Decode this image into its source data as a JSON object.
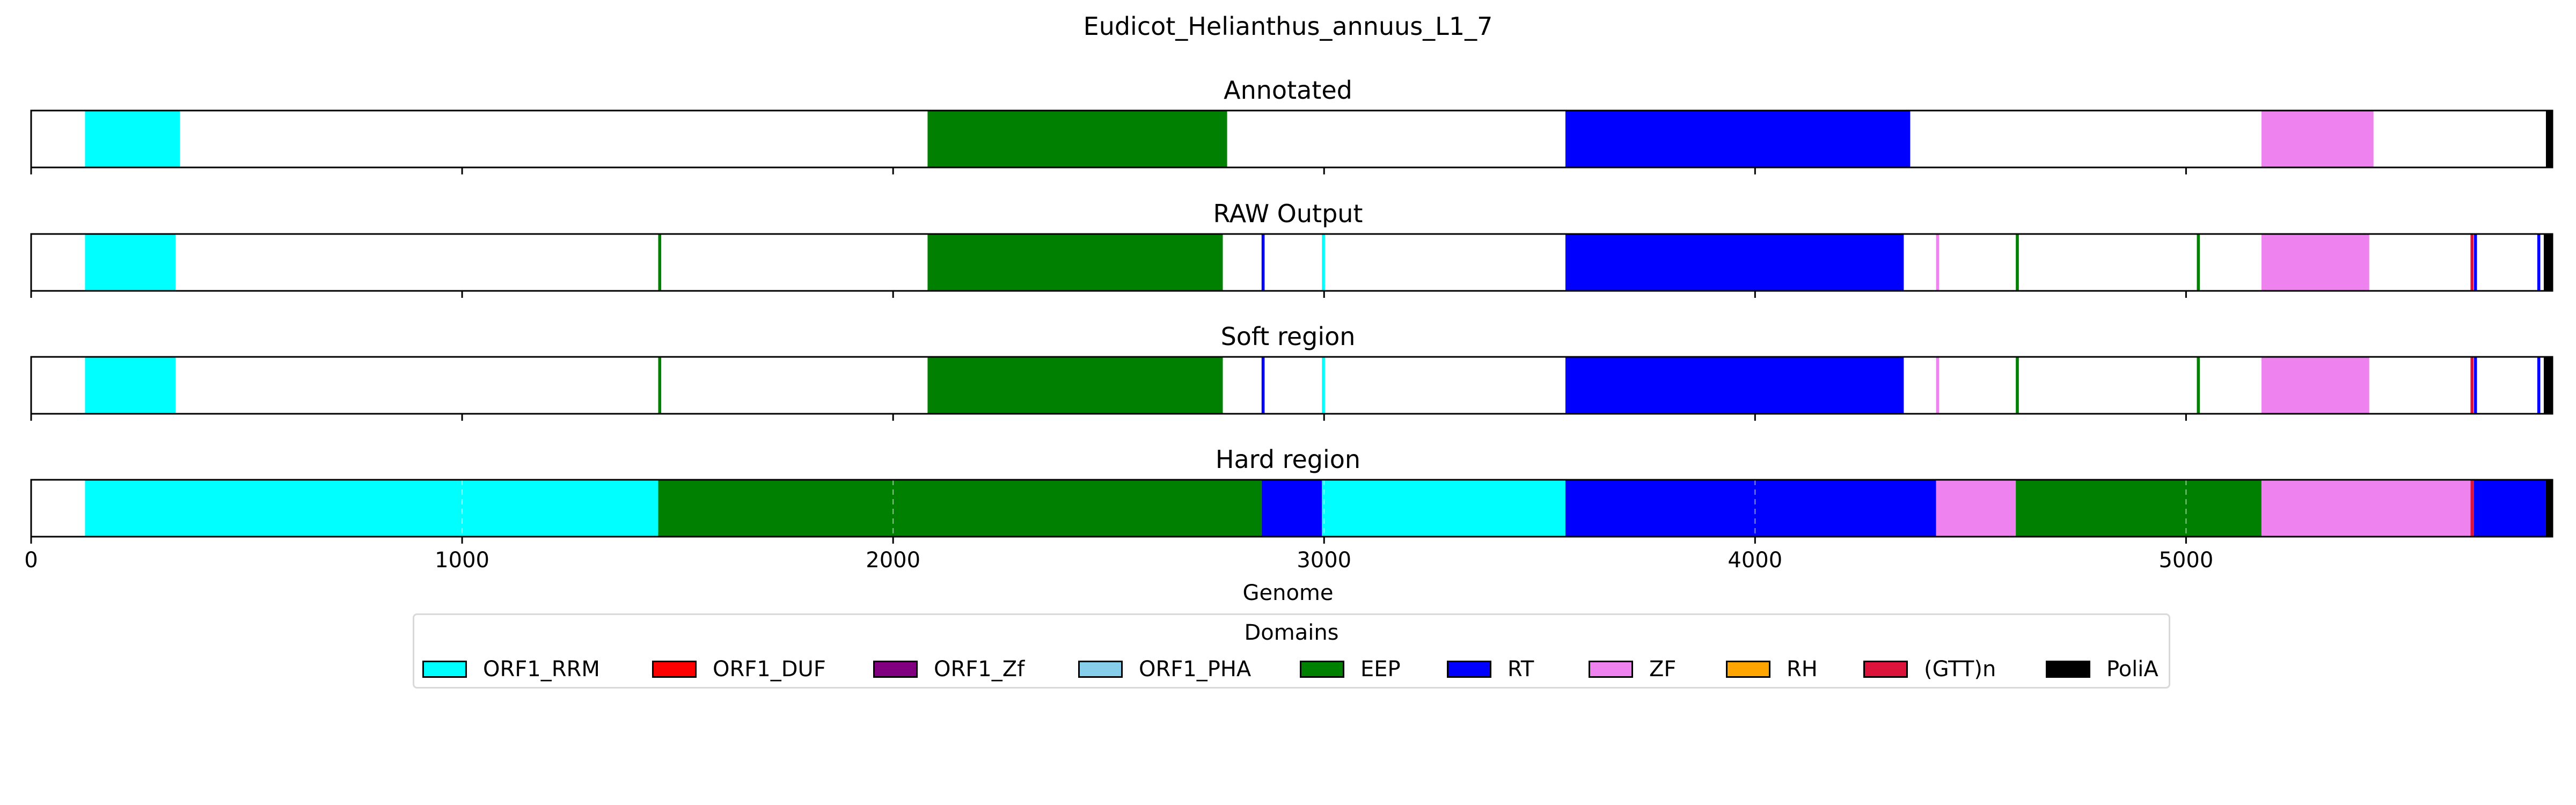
{
  "chart_data": {
    "type": "genome-track",
    "title": "Eudicot_Helianthus_annuus_L1_7",
    "xlabel": "Genome",
    "xlim": [
      0,
      5850
    ],
    "xticks": [
      0,
      1000,
      2000,
      3000,
      4000,
      5000
    ],
    "grid": "dashed vertical on Hard region track",
    "legend": {
      "title": "Domains",
      "placement": "bottom-center",
      "entries": [
        {
          "label": "ORF1_RRM",
          "color": "#00ffff"
        },
        {
          "label": "ORF1_DUF",
          "color": "#ff0000"
        },
        {
          "label": "ORF1_Zf",
          "color": "#800080"
        },
        {
          "label": "ORF1_PHA",
          "color": "#87ceeb"
        },
        {
          "label": "EEP",
          "color": "#008000"
        },
        {
          "label": "RT",
          "color": "#0000ff"
        },
        {
          "label": "ZF",
          "color": "#ee82ee"
        },
        {
          "label": "RH",
          "color": "#ffa500"
        },
        {
          "label": "(GTT)n",
          "color": "#dc143c"
        },
        {
          "label": "PoliA",
          "color": "#000000"
        }
      ]
    },
    "tracks": [
      {
        "name": "Annotated",
        "segments": [
          {
            "domain": "ORF1_RRM",
            "start": 125,
            "end": 345
          },
          {
            "domain": "EEP",
            "start": 2080,
            "end": 2775
          },
          {
            "domain": "RT",
            "start": 3560,
            "end": 4360
          },
          {
            "domain": "ZF",
            "start": 5175,
            "end": 5435
          },
          {
            "domain": "PoliA",
            "start": 5835,
            "end": 5850
          }
        ]
      },
      {
        "name": "RAW Output",
        "segments": [
          {
            "domain": "ORF1_RRM",
            "start": 125,
            "end": 335
          },
          {
            "domain": "EEP",
            "start": 1455,
            "end": 1462
          },
          {
            "domain": "EEP",
            "start": 2080,
            "end": 2765
          },
          {
            "domain": "RT",
            "start": 2855,
            "end": 2862
          },
          {
            "domain": "ORF1_RRM",
            "start": 2995,
            "end": 3002
          },
          {
            "domain": "RT",
            "start": 3560,
            "end": 4345
          },
          {
            "domain": "ZF",
            "start": 4420,
            "end": 4427
          },
          {
            "domain": "EEP",
            "start": 4605,
            "end": 4612
          },
          {
            "domain": "EEP",
            "start": 5025,
            "end": 5032
          },
          {
            "domain": "ZF",
            "start": 5175,
            "end": 5425
          },
          {
            "domain": "(GTT)n",
            "start": 5660,
            "end": 5667
          },
          {
            "domain": "RT",
            "start": 5668,
            "end": 5675
          },
          {
            "domain": "RT",
            "start": 5815,
            "end": 5822
          },
          {
            "domain": "PoliA",
            "start": 5830,
            "end": 5850
          }
        ]
      },
      {
        "name": "Soft region",
        "segments": [
          {
            "domain": "ORF1_RRM",
            "start": 125,
            "end": 335
          },
          {
            "domain": "EEP",
            "start": 1455,
            "end": 1462
          },
          {
            "domain": "EEP",
            "start": 2080,
            "end": 2765
          },
          {
            "domain": "RT",
            "start": 2855,
            "end": 2862
          },
          {
            "domain": "ORF1_RRM",
            "start": 2995,
            "end": 3002
          },
          {
            "domain": "RT",
            "start": 3560,
            "end": 4345
          },
          {
            "domain": "ZF",
            "start": 4420,
            "end": 4427
          },
          {
            "domain": "EEP",
            "start": 4605,
            "end": 4612
          },
          {
            "domain": "EEP",
            "start": 5025,
            "end": 5032
          },
          {
            "domain": "ZF",
            "start": 5175,
            "end": 5425
          },
          {
            "domain": "(GTT)n",
            "start": 5660,
            "end": 5667
          },
          {
            "domain": "RT",
            "start": 5668,
            "end": 5675
          },
          {
            "domain": "RT",
            "start": 5815,
            "end": 5822
          },
          {
            "domain": "PoliA",
            "start": 5830,
            "end": 5850
          }
        ]
      },
      {
        "name": "Hard region",
        "segments": [
          {
            "domain": "ORF1_RRM",
            "start": 125,
            "end": 1455
          },
          {
            "domain": "EEP",
            "start": 1455,
            "end": 2855
          },
          {
            "domain": "RT",
            "start": 2855,
            "end": 2995
          },
          {
            "domain": "ORF1_RRM",
            "start": 2995,
            "end": 3560
          },
          {
            "domain": "RT",
            "start": 3560,
            "end": 4420
          },
          {
            "domain": "ZF",
            "start": 4420,
            "end": 4605
          },
          {
            "domain": "EEP",
            "start": 4605,
            "end": 5175
          },
          {
            "domain": "ZF",
            "start": 5175,
            "end": 5660
          },
          {
            "domain": "(GTT)n",
            "start": 5660,
            "end": 5668
          },
          {
            "domain": "RT",
            "start": 5668,
            "end": 5835
          },
          {
            "domain": "PoliA",
            "start": 5835,
            "end": 5850
          }
        ]
      }
    ]
  }
}
